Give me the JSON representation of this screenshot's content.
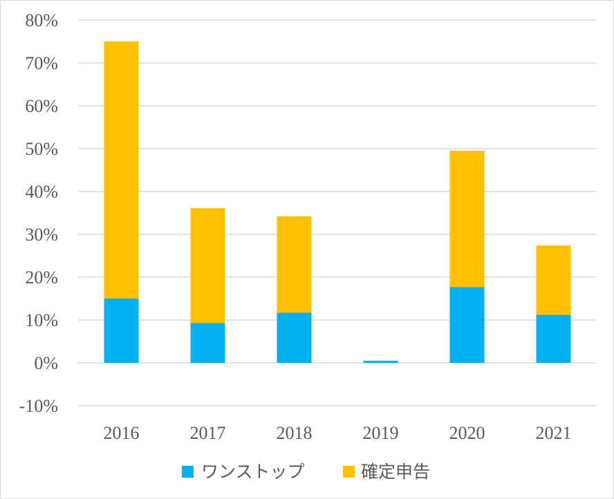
{
  "chart_data": {
    "type": "bar",
    "stacked": true,
    "categories": [
      "2016",
      "2017",
      "2018",
      "2019",
      "2020",
      "2021"
    ],
    "series": [
      {
        "name": "ワンストップ",
        "color": "#00b0f0",
        "values": [
          0.15,
          0.093,
          0.117,
          0.005,
          0.177,
          0.112
        ]
      },
      {
        "name": "確定申告",
        "color": "#ffc000",
        "values": [
          0.6,
          0.268,
          0.225,
          0.0,
          0.318,
          0.162
        ]
      }
    ],
    "y_ticks": [
      "80%",
      "70%",
      "60%",
      "50%",
      "40%",
      "30%",
      "20%",
      "10%",
      "0%",
      "-10%"
    ],
    "ylim": [
      -0.1,
      0.8
    ],
    "y_format": "percent",
    "grid": true,
    "legend_position": "bottom",
    "title": "",
    "xlabel": "",
    "ylabel": ""
  }
}
